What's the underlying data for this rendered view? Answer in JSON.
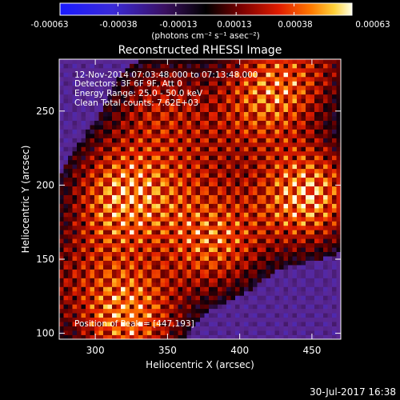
{
  "colorbar": {
    "min": -0.00063,
    "max": 0.00063,
    "tick_labels": [
      "-0.00063",
      "-0.00038",
      "-0.00013",
      "0.00013",
      "0.00038",
      "0.00063"
    ],
    "unit_label": "(photons cm⁻² s⁻¹ asec⁻²)"
  },
  "title": "Reconstructed RHESSI Image",
  "annotations": {
    "time_range": "12-Nov-2014 07:03:48.000 to 07:13:48.000",
    "detectors": "Detectors: 3F 6F 9F, Att 0",
    "energy": "Energy Range: 25.0 - 50.0 keV",
    "clean": "Clean     Total counts: 7.62E+03",
    "peak": "Position of Peak = [447,193]"
  },
  "footer": {
    "timestamp": "30-Jul-2017 16:38"
  },
  "chart_data": {
    "type": "heatmap",
    "title": "Reconstructed RHESSI Image",
    "xlabel": "Heliocentric X (arcsec)",
    "ylabel": "Heliocentric Y (arcsec)",
    "xlim": [
      275,
      470
    ],
    "ylim": [
      96,
      285
    ],
    "x_ticks": [
      300,
      350,
      400,
      450
    ],
    "y_ticks": [
      100,
      150,
      200,
      250
    ],
    "value_range": [
      -0.00063,
      0.00063
    ],
    "peak_position": [
      447,
      193
    ],
    "bright_regions": [
      {
        "x": 322,
        "y": 112,
        "level": 0.95
      },
      {
        "x": 447,
        "y": 193,
        "level": 1.0
      },
      {
        "x": 382,
        "y": 162,
        "level": 0.8
      },
      {
        "x": 315,
        "y": 198,
        "level": 0.72
      },
      {
        "x": 420,
        "y": 270,
        "level": 0.6
      },
      {
        "x": 345,
        "y": 255,
        "level": 0.55
      }
    ]
  }
}
